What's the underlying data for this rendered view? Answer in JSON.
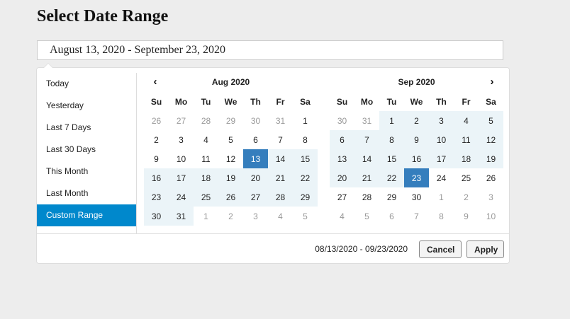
{
  "page": {
    "title": "Select Date Range"
  },
  "input": {
    "value": "August 13, 2020 - September 23, 2020"
  },
  "ranges": [
    "Today",
    "Yesterday",
    "Last 7 Days",
    "Last 30 Days",
    "This Month",
    "Last Month",
    "Custom Range"
  ],
  "active_range": "Custom Range",
  "weekdays": [
    "Su",
    "Mo",
    "Tu",
    "We",
    "Th",
    "Fr",
    "Sa"
  ],
  "calendars": [
    {
      "month_label": "Aug 2020",
      "nav": "prev",
      "nav_icon": "‹",
      "weeks": [
        [
          {
            "d": "26",
            "s": "off"
          },
          {
            "d": "27",
            "s": "off"
          },
          {
            "d": "28",
            "s": "off"
          },
          {
            "d": "29",
            "s": "off"
          },
          {
            "d": "30",
            "s": "off"
          },
          {
            "d": "31",
            "s": "off"
          },
          {
            "d": "1",
            "s": ""
          }
        ],
        [
          {
            "d": "2",
            "s": ""
          },
          {
            "d": "3",
            "s": ""
          },
          {
            "d": "4",
            "s": ""
          },
          {
            "d": "5",
            "s": ""
          },
          {
            "d": "6",
            "s": ""
          },
          {
            "d": "7",
            "s": ""
          },
          {
            "d": "8",
            "s": ""
          }
        ],
        [
          {
            "d": "9",
            "s": ""
          },
          {
            "d": "10",
            "s": ""
          },
          {
            "d": "11",
            "s": ""
          },
          {
            "d": "12",
            "s": ""
          },
          {
            "d": "13",
            "s": "active"
          },
          {
            "d": "14",
            "s": "in-range"
          },
          {
            "d": "15",
            "s": "in-range"
          }
        ],
        [
          {
            "d": "16",
            "s": "in-range"
          },
          {
            "d": "17",
            "s": "in-range"
          },
          {
            "d": "18",
            "s": "in-range"
          },
          {
            "d": "19",
            "s": "in-range"
          },
          {
            "d": "20",
            "s": "in-range"
          },
          {
            "d": "21",
            "s": "in-range"
          },
          {
            "d": "22",
            "s": "in-range"
          }
        ],
        [
          {
            "d": "23",
            "s": "in-range"
          },
          {
            "d": "24",
            "s": "in-range"
          },
          {
            "d": "25",
            "s": "in-range"
          },
          {
            "d": "26",
            "s": "in-range"
          },
          {
            "d": "27",
            "s": "in-range"
          },
          {
            "d": "28",
            "s": "in-range"
          },
          {
            "d": "29",
            "s": "in-range"
          }
        ],
        [
          {
            "d": "30",
            "s": "in-range"
          },
          {
            "d": "31",
            "s": "in-range"
          },
          {
            "d": "1",
            "s": "off"
          },
          {
            "d": "2",
            "s": "off"
          },
          {
            "d": "3",
            "s": "off"
          },
          {
            "d": "4",
            "s": "off"
          },
          {
            "d": "5",
            "s": "off"
          }
        ]
      ]
    },
    {
      "month_label": "Sep 2020",
      "nav": "next",
      "nav_icon": "›",
      "weeks": [
        [
          {
            "d": "30",
            "s": "off"
          },
          {
            "d": "31",
            "s": "off"
          },
          {
            "d": "1",
            "s": "in-range"
          },
          {
            "d": "2",
            "s": "in-range"
          },
          {
            "d": "3",
            "s": "in-range"
          },
          {
            "d": "4",
            "s": "in-range"
          },
          {
            "d": "5",
            "s": "in-range"
          }
        ],
        [
          {
            "d": "6",
            "s": "in-range"
          },
          {
            "d": "7",
            "s": "in-range"
          },
          {
            "d": "8",
            "s": "in-range"
          },
          {
            "d": "9",
            "s": "in-range"
          },
          {
            "d": "10",
            "s": "in-range"
          },
          {
            "d": "11",
            "s": "in-range"
          },
          {
            "d": "12",
            "s": "in-range"
          }
        ],
        [
          {
            "d": "13",
            "s": "in-range"
          },
          {
            "d": "14",
            "s": "in-range"
          },
          {
            "d": "15",
            "s": "in-range"
          },
          {
            "d": "16",
            "s": "in-range"
          },
          {
            "d": "17",
            "s": "in-range"
          },
          {
            "d": "18",
            "s": "in-range"
          },
          {
            "d": "19",
            "s": "in-range"
          }
        ],
        [
          {
            "d": "20",
            "s": "in-range"
          },
          {
            "d": "21",
            "s": "in-range"
          },
          {
            "d": "22",
            "s": "in-range"
          },
          {
            "d": "23",
            "s": "active"
          },
          {
            "d": "24",
            "s": ""
          },
          {
            "d": "25",
            "s": ""
          },
          {
            "d": "26",
            "s": ""
          }
        ],
        [
          {
            "d": "27",
            "s": ""
          },
          {
            "d": "28",
            "s": ""
          },
          {
            "d": "29",
            "s": ""
          },
          {
            "d": "30",
            "s": ""
          },
          {
            "d": "1",
            "s": "off"
          },
          {
            "d": "2",
            "s": "off"
          },
          {
            "d": "3",
            "s": "off"
          }
        ],
        [
          {
            "d": "4",
            "s": "off"
          },
          {
            "d": "5",
            "s": "off"
          },
          {
            "d": "6",
            "s": "off"
          },
          {
            "d": "7",
            "s": "off"
          },
          {
            "d": "8",
            "s": "off"
          },
          {
            "d": "9",
            "s": "off"
          },
          {
            "d": "10",
            "s": "off"
          }
        ]
      ]
    }
  ],
  "footer": {
    "selected_range": "08/13/2020 - 09/23/2020",
    "cancel_label": "Cancel",
    "apply_label": "Apply"
  },
  "colors": {
    "accent": "#0088cc",
    "selected_day": "#357ebd",
    "in_range": "#ebf4f8"
  }
}
